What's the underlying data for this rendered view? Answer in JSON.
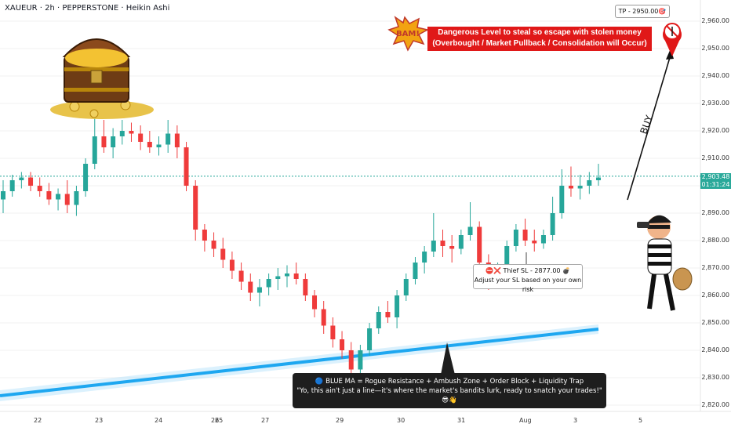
{
  "header": {
    "title": "XAUEUR · 2h · PEPPERSTONE · Heikin Ashi"
  },
  "price_axis": {
    "labels": [
      "2,960.00",
      "2,950.00",
      "2,940.00",
      "2,930.00",
      "2,920.00",
      "2,910.00",
      "2,900.00",
      "2,890.00",
      "2,880.00",
      "2,870.00",
      "2,860.00",
      "2,850.00",
      "2,840.00",
      "2,830.00",
      "2,820.00"
    ],
    "current_price": "2,903.48",
    "countdown": "01:31:24"
  },
  "time_axis": {
    "labels": [
      "22",
      "23",
      "24",
      "25",
      "26",
      "27",
      "29",
      "30",
      "31",
      "Aug",
      "3",
      "5"
    ]
  },
  "annotations": {
    "tp_label": "TP - 2950.00🎯",
    "danger_line1": "Dangerous Level to steal so escape with stolen money",
    "danger_line2": "(Overbought / Market Pullback / Consolidation will Occur)",
    "sl_line1": "⛔❌ Thief SL - 2877.00 💣",
    "sl_line2": "Adjust your SL based on your own risk",
    "ma_line1": "🔵 BLUE MA = Rogue Resistance + Ambush Zone + Order Block + Liquidity Trap",
    "ma_line2": "\"Yo, this ain't just a line—it's where the market's bandits lurk, ready to snatch your trades!\" 😎👋",
    "buy_label": "BUY"
  },
  "colors": {
    "up": "#26a69a",
    "down": "#ef3b3b",
    "ma": "#1ea7f0",
    "price_line": "#26a69a"
  },
  "chart_data": {
    "type": "candlestick",
    "title": "XAUEUR · 2h · PEPPERSTONE · Heikin Ashi",
    "y_range": [
      2818,
      2966
    ],
    "current_price": 2903.48,
    "take_profit": 2950.0,
    "stop_loss": 2877.0,
    "moving_average": {
      "name": "BLUE MA",
      "start": 2830,
      "end": 2847
    },
    "x_ticks": [
      "22",
      "23",
      "24",
      "25",
      "26",
      "27",
      "29",
      "30",
      "31",
      "Aug",
      "3",
      "5"
    ],
    "candles": [
      {
        "o": 2895,
        "h": 2902,
        "l": 2890,
        "c": 2898
      },
      {
        "o": 2898,
        "h": 2904,
        "l": 2896,
        "c": 2902
      },
      {
        "o": 2902,
        "h": 2905,
        "l": 2899,
        "c": 2903
      },
      {
        "o": 2903,
        "h": 2905,
        "l": 2898,
        "c": 2900
      },
      {
        "o": 2900,
        "h": 2903,
        "l": 2896,
        "c": 2898
      },
      {
        "o": 2898,
        "h": 2901,
        "l": 2893,
        "c": 2895
      },
      {
        "o": 2895,
        "h": 2899,
        "l": 2891,
        "c": 2897
      },
      {
        "o": 2897,
        "h": 2902,
        "l": 2890,
        "c": 2893
      },
      {
        "o": 2893,
        "h": 2900,
        "l": 2889,
        "c": 2898
      },
      {
        "o": 2898,
        "h": 2910,
        "l": 2896,
        "c": 2908
      },
      {
        "o": 2908,
        "h": 2926,
        "l": 2906,
        "c": 2918
      },
      {
        "o": 2918,
        "h": 2924,
        "l": 2912,
        "c": 2914
      },
      {
        "o": 2914,
        "h": 2921,
        "l": 2910,
        "c": 2918
      },
      {
        "o": 2918,
        "h": 2924,
        "l": 2915,
        "c": 2920
      },
      {
        "o": 2920,
        "h": 2923,
        "l": 2916,
        "c": 2919
      },
      {
        "o": 2919,
        "h": 2922,
        "l": 2913,
        "c": 2916
      },
      {
        "o": 2916,
        "h": 2920,
        "l": 2912,
        "c": 2914
      },
      {
        "o": 2914,
        "h": 2918,
        "l": 2911,
        "c": 2915
      },
      {
        "o": 2915,
        "h": 2924,
        "l": 2912,
        "c": 2919
      },
      {
        "o": 2919,
        "h": 2922,
        "l": 2910,
        "c": 2914
      },
      {
        "o": 2914,
        "h": 2916,
        "l": 2898,
        "c": 2900
      },
      {
        "o": 2900,
        "h": 2902,
        "l": 2880,
        "c": 2884
      },
      {
        "o": 2884,
        "h": 2886,
        "l": 2876,
        "c": 2880
      },
      {
        "o": 2880,
        "h": 2883,
        "l": 2874,
        "c": 2877
      },
      {
        "o": 2877,
        "h": 2881,
        "l": 2870,
        "c": 2873
      },
      {
        "o": 2873,
        "h": 2876,
        "l": 2866,
        "c": 2869
      },
      {
        "o": 2869,
        "h": 2872,
        "l": 2862,
        "c": 2865
      },
      {
        "o": 2865,
        "h": 2868,
        "l": 2858,
        "c": 2861
      },
      {
        "o": 2861,
        "h": 2866,
        "l": 2856,
        "c": 2863
      },
      {
        "o": 2863,
        "h": 2868,
        "l": 2860,
        "c": 2866
      },
      {
        "o": 2866,
        "h": 2870,
        "l": 2862,
        "c": 2867
      },
      {
        "o": 2867,
        "h": 2871,
        "l": 2863,
        "c": 2868
      },
      {
        "o": 2868,
        "h": 2872,
        "l": 2864,
        "c": 2866
      },
      {
        "o": 2866,
        "h": 2868,
        "l": 2858,
        "c": 2860
      },
      {
        "o": 2860,
        "h": 2862,
        "l": 2852,
        "c": 2855
      },
      {
        "o": 2855,
        "h": 2858,
        "l": 2846,
        "c": 2849
      },
      {
        "o": 2849,
        "h": 2852,
        "l": 2841,
        "c": 2844
      },
      {
        "o": 2844,
        "h": 2847,
        "l": 2837,
        "c": 2840
      },
      {
        "o": 2840,
        "h": 2843,
        "l": 2826,
        "c": 2833
      },
      {
        "o": 2833,
        "h": 2842,
        "l": 2830,
        "c": 2840
      },
      {
        "o": 2840,
        "h": 2850,
        "l": 2838,
        "c": 2848
      },
      {
        "o": 2848,
        "h": 2856,
        "l": 2846,
        "c": 2854
      },
      {
        "o": 2854,
        "h": 2858,
        "l": 2850,
        "c": 2852
      },
      {
        "o": 2852,
        "h": 2862,
        "l": 2848,
        "c": 2860
      },
      {
        "o": 2860,
        "h": 2868,
        "l": 2858,
        "c": 2866
      },
      {
        "o": 2866,
        "h": 2874,
        "l": 2864,
        "c": 2872
      },
      {
        "o": 2872,
        "h": 2878,
        "l": 2868,
        "c": 2876
      },
      {
        "o": 2876,
        "h": 2890,
        "l": 2874,
        "c": 2880
      },
      {
        "o": 2880,
        "h": 2884,
        "l": 2874,
        "c": 2878
      },
      {
        "o": 2878,
        "h": 2882,
        "l": 2872,
        "c": 2877
      },
      {
        "o": 2877,
        "h": 2884,
        "l": 2875,
        "c": 2882
      },
      {
        "o": 2882,
        "h": 2894,
        "l": 2880,
        "c": 2885
      },
      {
        "o": 2885,
        "h": 2887,
        "l": 2870,
        "c": 2872
      },
      {
        "o": 2872,
        "h": 2875,
        "l": 2862,
        "c": 2866
      },
      {
        "o": 2866,
        "h": 2872,
        "l": 2864,
        "c": 2870
      },
      {
        "o": 2870,
        "h": 2880,
        "l": 2868,
        "c": 2878
      },
      {
        "o": 2878,
        "h": 2886,
        "l": 2876,
        "c": 2884
      },
      {
        "o": 2884,
        "h": 2888,
        "l": 2878,
        "c": 2880
      },
      {
        "o": 2880,
        "h": 2884,
        "l": 2876,
        "c": 2879
      },
      {
        "o": 2879,
        "h": 2884,
        "l": 2877,
        "c": 2882
      },
      {
        "o": 2882,
        "h": 2896,
        "l": 2880,
        "c": 2890
      },
      {
        "o": 2890,
        "h": 2906,
        "l": 2888,
        "c": 2900
      },
      {
        "o": 2900,
        "h": 2907,
        "l": 2896,
        "c": 2899
      },
      {
        "o": 2899,
        "h": 2904,
        "l": 2895,
        "c": 2900
      },
      {
        "o": 2900,
        "h": 2905,
        "l": 2897,
        "c": 2902
      },
      {
        "o": 2902,
        "h": 2908,
        "l": 2900,
        "c": 2903
      }
    ]
  }
}
